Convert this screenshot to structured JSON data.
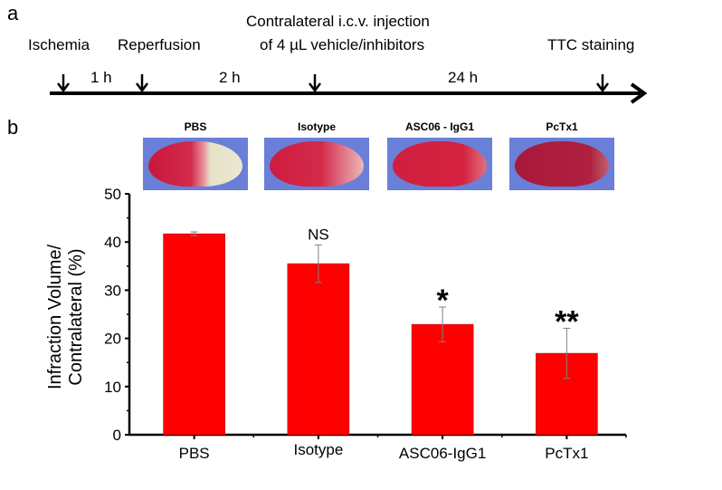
{
  "panel_a": {
    "label": "a",
    "events": [
      {
        "label": "Ischemia"
      },
      {
        "label": "Reperfusion"
      },
      {
        "label_line1": "Contralateral i.c.v. injection",
        "label_line2": "of 4 µL vehicle/inhibitors"
      },
      {
        "label": "TTC staining"
      }
    ],
    "intervals": [
      "1 h",
      "2 h",
      "24 h"
    ]
  },
  "panel_b": {
    "label": "b",
    "images": [
      {
        "title": "PBS",
        "infarct_side": "right-pale"
      },
      {
        "title": "Isotype",
        "infarct_side": "right-partial"
      },
      {
        "title": "ASC06 - IgG1",
        "infarct_side": "minor"
      },
      {
        "title": "PcTx1",
        "infarct_side": "minimal"
      }
    ],
    "colors": {
      "bar": "#ff0000",
      "error": "#808080",
      "slice_bg": "#6a7fd8"
    }
  },
  "chart_data": {
    "type": "bar",
    "title": "",
    "xlabel": "",
    "ylabel_line1": "Infraction Volume/",
    "ylabel_line2": "Contralateral (%)",
    "categories": [
      "PBS",
      "Isotype",
      "ASC06-IgG1",
      "PcTx1"
    ],
    "values": [
      41.7,
      35.5,
      22.9,
      16.9
    ],
    "errors": [
      0.4,
      3.9,
      3.6,
      5.2
    ],
    "annotations": [
      "",
      "NS",
      "*",
      "**"
    ],
    "ylim": [
      0,
      50
    ],
    "yticks": [
      0,
      10,
      20,
      30,
      40,
      50
    ],
    "grid": false,
    "legend": "none"
  }
}
